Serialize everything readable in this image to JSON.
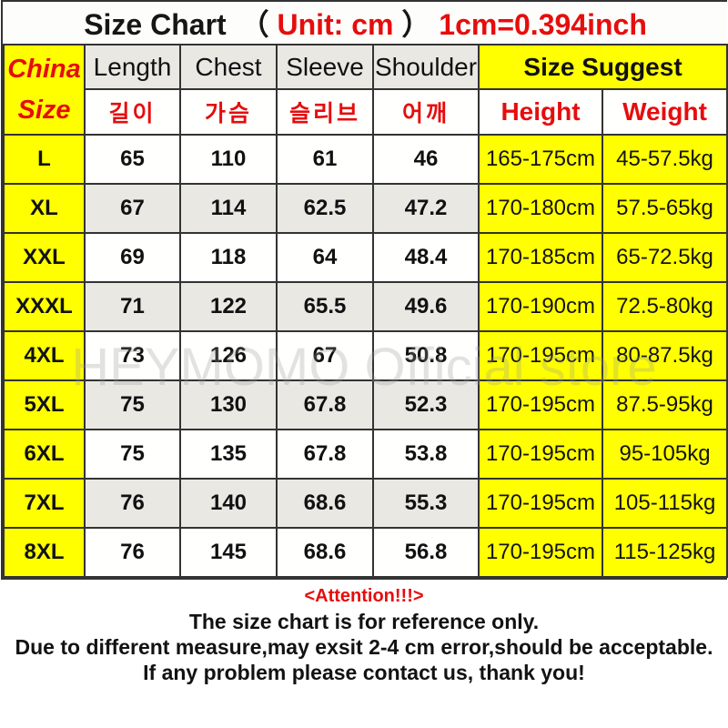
{
  "watermark": "HEYMOMO Official store",
  "title": {
    "main": "Size Chart",
    "open_paren": "（",
    "unit": "Unit: cm",
    "close_paren": "）",
    "conversion": "1cm=0.394inch"
  },
  "table": {
    "corner": {
      "line1": "China",
      "line2": "Size"
    },
    "measure_headers": [
      {
        "en": "Length",
        "kr": "길이"
      },
      {
        "en": "Chest",
        "kr": "가슴"
      },
      {
        "en": "Sleeve",
        "kr": "슬리브"
      },
      {
        "en": "Shoulder",
        "kr": "어깨"
      }
    ],
    "suggest_header": "Size Suggest",
    "suggest_sub": [
      "Height",
      "Weight"
    ],
    "row_fields": [
      "size",
      "length",
      "chest",
      "sleeve",
      "shoulder",
      "height",
      "weight"
    ]
  },
  "attention": {
    "heading": "<Attention!!!>",
    "lines": [
      "The size chart is for reference only.",
      "Due to different measure,may exsit 2-4 cm error,should be acceptable.",
      "If any problem please contact us, thank you!"
    ]
  },
  "colors": {
    "accent_yellow": "#ffff00",
    "accent_red": "#e60d0d",
    "row_alt_gray": "#e9e8e3",
    "border": "#333333"
  },
  "chart_data": {
    "type": "table",
    "title": "Size Chart （Unit: cm）1cm=0.394inch",
    "unit": "cm",
    "conversion": "1cm=0.394inch",
    "columns": [
      "China Size",
      "Length (길이)",
      "Chest (가슴)",
      "Sleeve (슬리브)",
      "Shoulder (어깨)",
      "Height",
      "Weight"
    ],
    "rows": [
      [
        "L",
        "65",
        "110",
        "61",
        "46",
        "165-175cm",
        "45-57.5kg"
      ],
      [
        "XL",
        "67",
        "114",
        "62.5",
        "47.2",
        "170-180cm",
        "57.5-65kg"
      ],
      [
        "XXL",
        "69",
        "118",
        "64",
        "48.4",
        "170-185cm",
        "65-72.5kg"
      ],
      [
        "XXXL",
        "71",
        "122",
        "65.5",
        "49.6",
        "170-190cm",
        "72.5-80kg"
      ],
      [
        "4XL",
        "73",
        "126",
        "67",
        "50.8",
        "170-195cm",
        "80-87.5kg"
      ],
      [
        "5XL",
        "75",
        "130",
        "67.8",
        "52.3",
        "170-195cm",
        "87.5-95kg"
      ],
      [
        "6XL",
        "75",
        "135",
        "67.8",
        "53.8",
        "170-195cm",
        "95-105kg"
      ],
      [
        "7XL",
        "76",
        "140",
        "68.6",
        "55.3",
        "170-195cm",
        "105-115kg"
      ],
      [
        "8XL",
        "76",
        "145",
        "68.6",
        "56.8",
        "170-195cm",
        "115-125kg"
      ]
    ]
  }
}
